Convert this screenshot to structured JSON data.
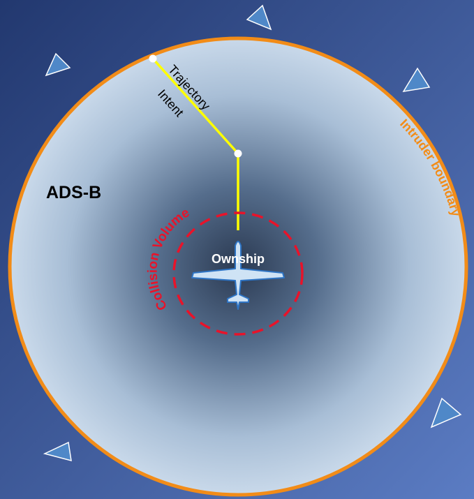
{
  "labels": {
    "ads_b": "ADS-B",
    "trajectory": "Trajectory",
    "intent": "Intent",
    "intruder_boundary": "Intruder boundary",
    "collision_volume": "Collision Volume",
    "ownship": "Ownship"
  },
  "colors": {
    "background_dark": "#2a3f78",
    "background_light": "#5a7ac0",
    "boundary": "#f28c18",
    "trajectory_line": "#ffff00",
    "collision": "#e8132a",
    "intruder_marker": "#4f88c8",
    "aircraft_fill": "#cfe3f5",
    "aircraft_stroke": "#2e74c4"
  },
  "icons": {
    "intruder_markers": "triangle-icon",
    "ownship": "aircraft-icon"
  }
}
